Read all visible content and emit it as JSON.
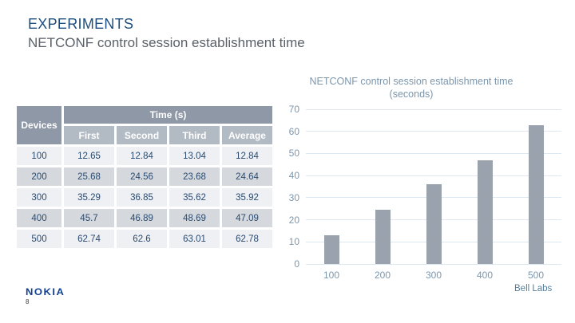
{
  "slide": {
    "title": "EXPERIMENTS",
    "subtitle": "NETCONF control session establishment time"
  },
  "footer": {
    "brand": "NOKIA",
    "brand_sub": "Bell Labs",
    "page_number": "8"
  },
  "table": {
    "corner_header": "Devices",
    "group_header": "Time (s)",
    "sub_headers": [
      "First",
      "Second",
      "Third",
      "Average"
    ],
    "rows": [
      [
        "100",
        "12.65",
        "12.84",
        "13.04",
        "12.84"
      ],
      [
        "200",
        "25.68",
        "24.56",
        "23.68",
        "24.64"
      ],
      [
        "300",
        "35.29",
        "36.85",
        "35.62",
        "35.92"
      ],
      [
        "400",
        "45.7",
        "46.89",
        "48.69",
        "47.09"
      ],
      [
        "500",
        "62.74",
        "62.6",
        "63.01",
        "62.78"
      ]
    ]
  },
  "chart_data": {
    "type": "bar",
    "title": "NETCONF control session establishment time (seconds)",
    "categories": [
      "100",
      "200",
      "300",
      "400",
      "500"
    ],
    "values": [
      12.84,
      24.64,
      35.92,
      47.09,
      62.78
    ],
    "xlabel": "",
    "ylabel": "",
    "ylim": [
      0,
      70
    ],
    "yticks": [
      0,
      10,
      20,
      30,
      40,
      50,
      60,
      70
    ],
    "grid": true,
    "legend": false,
    "bar_color": "#99a2ad"
  },
  "colors": {
    "title_blue": "#1d4e7e",
    "subtitle_gray": "#5a6169",
    "table_header_bg": "#8e98a6",
    "table_subheader_bg": "#b2bac4",
    "table_row_light": "#eef0f3",
    "table_row_dark": "#d5d9de",
    "table_text": "#2b4a6e",
    "chart_text": "#7d97ad",
    "gridline": "#dde7f0",
    "bar": "#99a2ad",
    "nokia_blue": "#124191"
  }
}
